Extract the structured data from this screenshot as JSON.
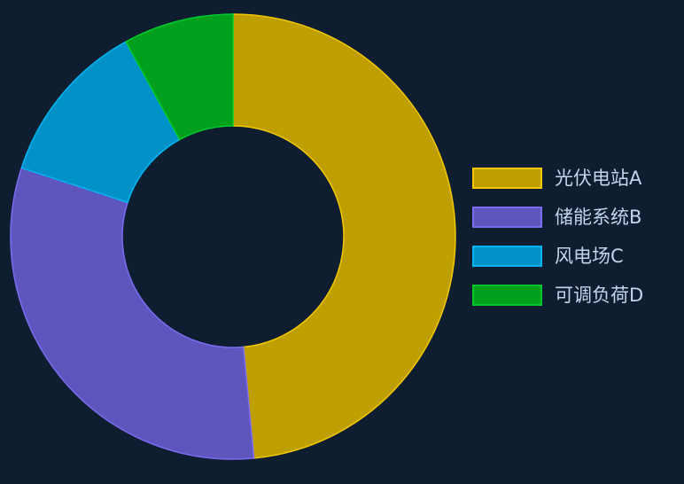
{
  "chart_data": {
    "type": "pie",
    "variant": "donut",
    "labels": [
      "光伏电站A",
      "储能系统B",
      "风电场C",
      "可调负荷D"
    ],
    "values": [
      48.5,
      31.5,
      12.0,
      8.0
    ],
    "colors": [
      "#bf9e00",
      "#5e55bd",
      "#0091c8",
      "#00a01d"
    ],
    "stroke_colors": [
      "#f2c700",
      "#7b6cf0",
      "#00b4f2",
      "#00c82c"
    ],
    "start": "top, clockwise",
    "legend_position": "right"
  }
}
